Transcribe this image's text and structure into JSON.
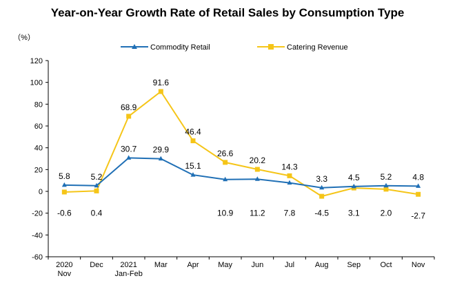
{
  "chart_data": {
    "type": "line",
    "title": "Year-on-Year Growth Rate of Retail Sales by Consumption Type",
    "unit_label": "（%）",
    "ylim": [
      -60,
      120
    ],
    "yticks": [
      -60,
      -40,
      -20,
      0,
      20,
      40,
      60,
      80,
      100,
      120
    ],
    "categories": [
      [
        "2020",
        "Nov"
      ],
      [
        "Dec"
      ],
      [
        "2021",
        "Jan-Feb"
      ],
      [
        "Mar"
      ],
      [
        "Apr"
      ],
      [
        "May"
      ],
      [
        "Jun"
      ],
      [
        "Jul"
      ],
      [
        "Aug"
      ],
      [
        "Sep"
      ],
      [
        "Oct"
      ],
      [
        "Nov"
      ]
    ],
    "grid": false,
    "legend_position": "top",
    "series": [
      {
        "name": "Commodity Retail",
        "color": "#1f6fb5",
        "marker": "triangle",
        "values": [
          5.8,
          5.2,
          30.7,
          29.9,
          15.1,
          10.9,
          11.2,
          7.8,
          3.3,
          4.5,
          5.2,
          4.8
        ],
        "labels": [
          "5.8",
          "5.2",
          "30.7",
          "29.9",
          "15.1",
          "10.9",
          "11.2",
          "7.8",
          "3.3",
          "4.5",
          "5.2",
          "4.8"
        ],
        "label_side": [
          "above",
          "above",
          "above",
          "above",
          "above",
          "below",
          "below",
          "below",
          "above",
          "above",
          "above",
          "above"
        ]
      },
      {
        "name": "Catering Revenue",
        "color": "#f5c518",
        "marker": "square",
        "values": [
          -0.6,
          0.4,
          68.9,
          91.6,
          46.4,
          26.6,
          20.2,
          14.3,
          -4.5,
          3.1,
          2.0,
          -2.7
        ],
        "labels": [
          "-0.6",
          "0.4",
          "68.9",
          "91.6",
          "46.4",
          "26.6",
          "20.2",
          "14.3",
          "-4.5",
          "3.1",
          "2.0",
          "-2.7"
        ],
        "label_side": [
          "below",
          "below",
          "above",
          "above",
          "above",
          "above",
          "above",
          "above",
          "below",
          "below",
          "below",
          "below"
        ]
      }
    ]
  }
}
